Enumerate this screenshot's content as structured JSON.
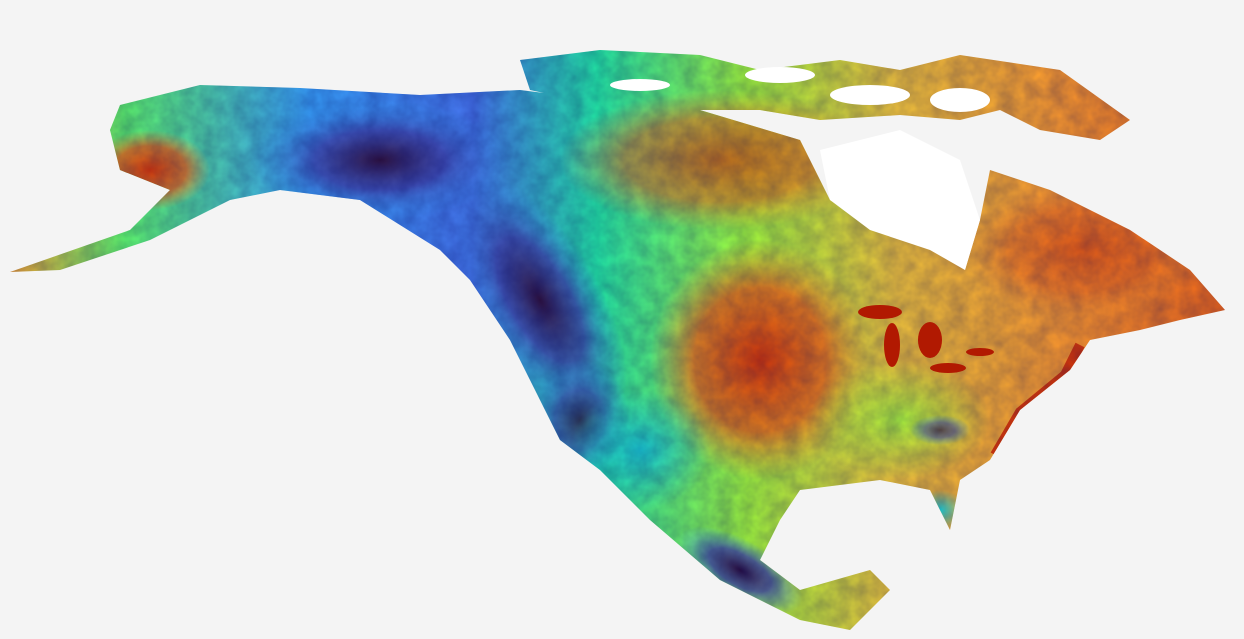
{
  "map": {
    "region": "North America",
    "colormap": [
      "#30123b",
      "#4145ab",
      "#4675ed",
      "#39a2fc",
      "#1bcfd4",
      "#24eca6",
      "#61fc6c",
      "#a4fc3b",
      "#d1e834",
      "#f3c63a",
      "#fe9b2d",
      "#f36315",
      "#d93806",
      "#b11901",
      "#7a0402"
    ],
    "background_color": "#f4f4f4",
    "water_color": "#ffffff"
  }
}
